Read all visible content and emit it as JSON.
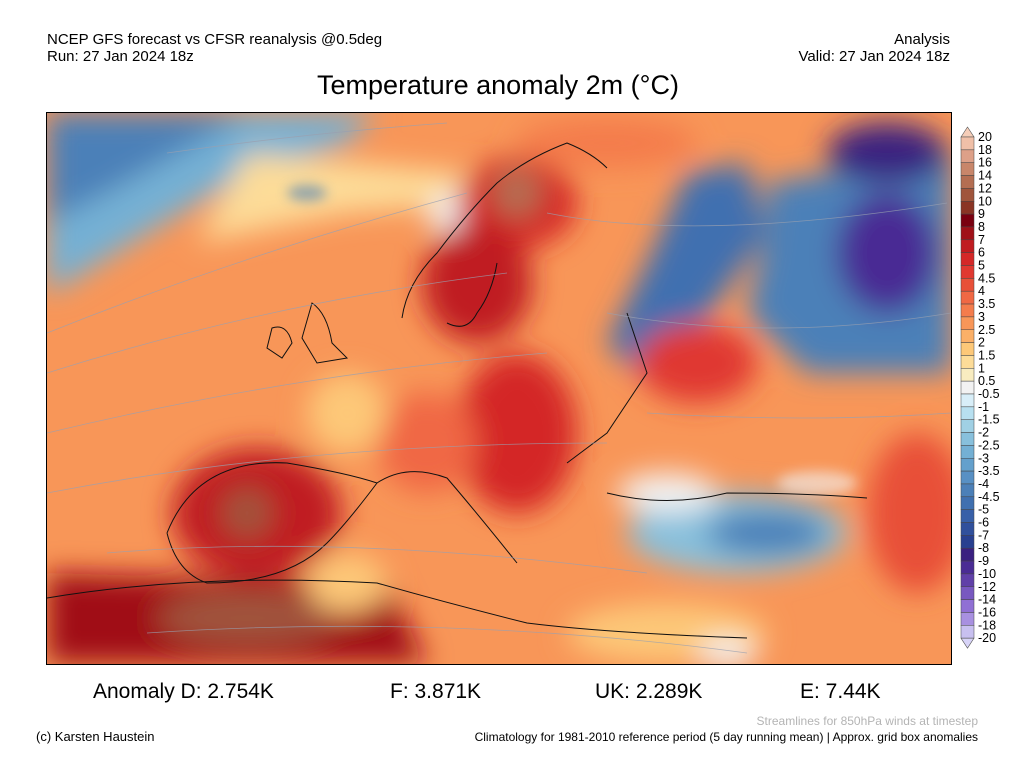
{
  "header": {
    "model_line": "NCEP GFS forecast vs CFSR reanalysis @0.5deg",
    "run_line": "Run: 27 Jan 2024 18z",
    "type_label": "Analysis",
    "valid_line": "Valid: 27 Jan 2024 18z"
  },
  "title": "Temperature anomaly 2m (°C)",
  "colorbar": {
    "labels": [
      "20",
      "18",
      "16",
      "14",
      "12",
      "10",
      "9",
      "8",
      "7",
      "6",
      "5",
      "4.5",
      "4",
      "3.5",
      "3",
      "2.5",
      "2",
      "1.5",
      "1",
      "0.5",
      "-0.5",
      "-1",
      "-1.5",
      "-2",
      "-2.5",
      "-3",
      "-3.5",
      "-4",
      "-4.5",
      "-5",
      "-6",
      "-7",
      "-8",
      "-9",
      "-10",
      "-12",
      "-14",
      "-16",
      "-18",
      "-20"
    ],
    "colors": [
      "#f0c0a8",
      "#dda088",
      "#c8866a",
      "#b46e52",
      "#a0553c",
      "#8a3424",
      "#7a0010",
      "#a01018",
      "#c01c20",
      "#d42828",
      "#e03830",
      "#e85038",
      "#f06844",
      "#f47c4c",
      "#f89658",
      "#fbb068",
      "#fdc878",
      "#fddc98",
      "#f8ecc0",
      "#f2f2f2",
      "#d8eef8",
      "#b8e0f0",
      "#a0d0e4",
      "#88c0dc",
      "#74b0d4",
      "#64a0cc",
      "#5890c4",
      "#4c80b8",
      "#4070b0",
      "#3860a8",
      "#30509c",
      "#284090",
      "#3a2080",
      "#4a2c94",
      "#6040a8",
      "#7858c0",
      "#9070d4",
      "#a890e0",
      "#c8c0f0"
    ],
    "top_arrow_color": "#f5cdb8",
    "bottom_arrow_color": "#d8d4f8"
  },
  "stats": [
    {
      "label": "Anomaly D: 2.754K"
    },
    {
      "label": "F: 3.871K"
    },
    {
      "label": "UK: 2.289K"
    },
    {
      "label": "E: 7.44K"
    }
  ],
  "footer": {
    "copyright": "(c) Karsten Haustein",
    "streamlines_note": "Streamlines for 850hPa winds at timestep",
    "climatology_note": "Climatology for 1981-2010 reference period (5 day running mean) | Approx. grid box anomalies"
  }
}
